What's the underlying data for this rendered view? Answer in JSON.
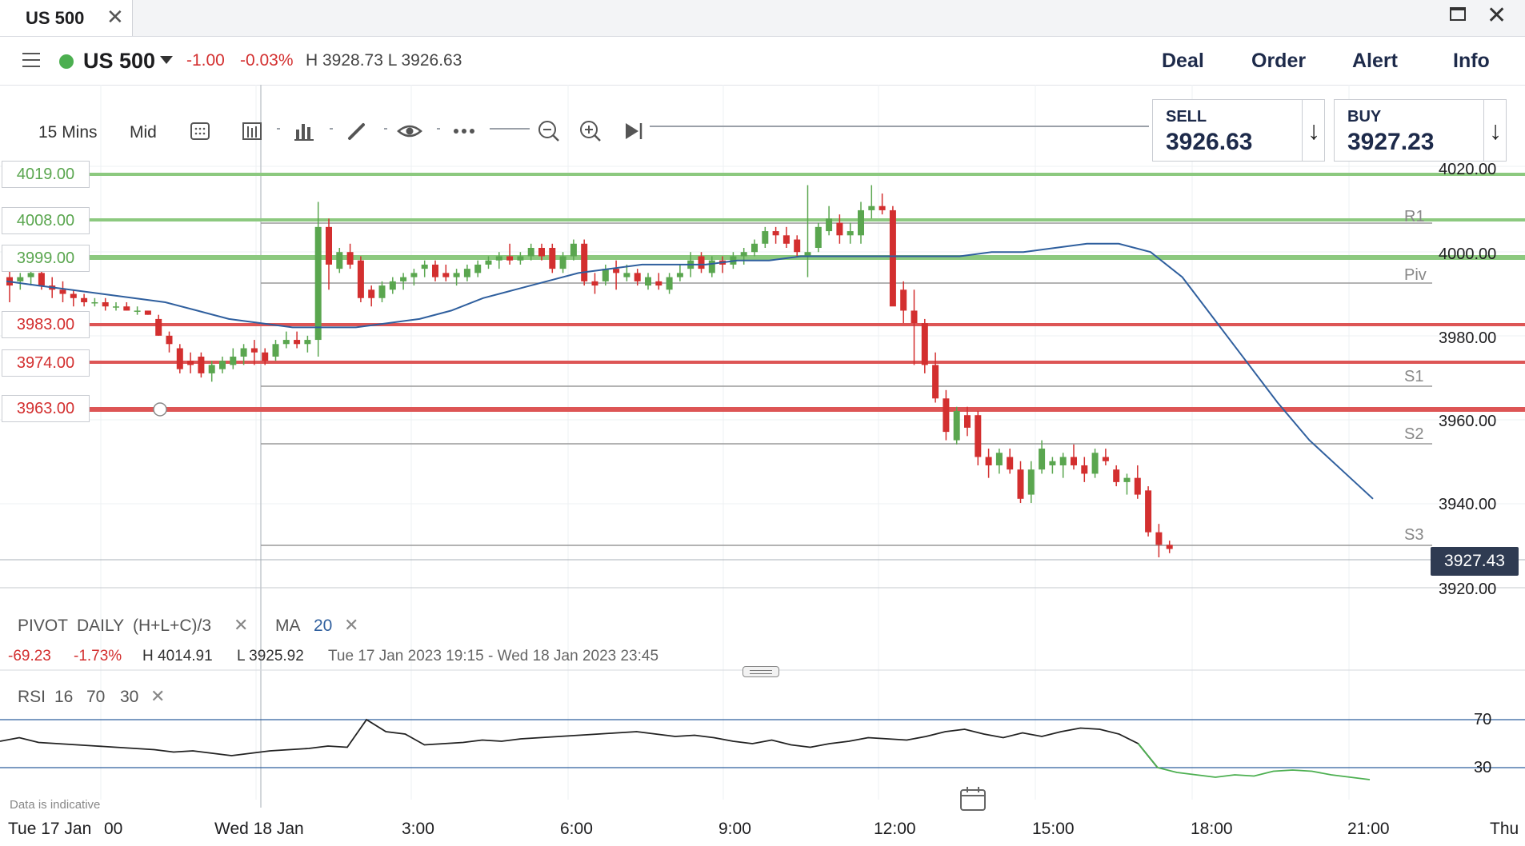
{
  "window": {
    "tab_title": "US 500"
  },
  "instrument": {
    "name": "US 500",
    "change_abs": "-1.00",
    "change_pct": "-0.03%",
    "high_low": "H 3928.73 L 3926.63"
  },
  "header_actions": [
    "Deal",
    "Order",
    "Alert",
    "Info"
  ],
  "toolbar": {
    "interval": "15 Mins",
    "price_type": "Mid"
  },
  "sell": {
    "label": "SELL",
    "price": "3926.63"
  },
  "buy": {
    "label": "BUY",
    "price": "3927.23"
  },
  "colors": {
    "up": "#5aa64f",
    "down": "#d32f2f",
    "ma": "#2f5f9e",
    "rsi": "#222222",
    "rsi_low": "#4caf50",
    "level_green": "#8cc97f",
    "level_red": "#dd5555"
  },
  "levels": [
    {
      "price": "4019.00",
      "type": "green"
    },
    {
      "price": "4008.00",
      "type": "green"
    },
    {
      "price": "3999.00",
      "type": "green"
    },
    {
      "price": "3983.00",
      "type": "red"
    },
    {
      "price": "3974.00",
      "type": "red"
    },
    {
      "price": "3963.00",
      "type": "red"
    }
  ],
  "price_axis": [
    "4020.00",
    "4000.00",
    "3980.00",
    "3960.00",
    "3940.00",
    "3920.00"
  ],
  "pivot_labels": [
    "R1",
    "Piv",
    "S1",
    "S2",
    "S3"
  ],
  "current_price": "3927.43",
  "indicators": {
    "pivot": {
      "name": "PIVOT",
      "period": "DAILY",
      "formula": "(H+L+C)/3"
    },
    "ma": {
      "name": "MA",
      "period": "20"
    },
    "rsi": {
      "name": "RSI",
      "period": "16",
      "upper": "70",
      "lower": "30"
    }
  },
  "range_stats": {
    "change_abs": "-69.23",
    "change_pct": "-1.73%",
    "high": "H 4014.91",
    "low": "L 3925.92",
    "range": "Tue 17 Jan 2023 19:15 - Wed 18 Jan 2023 23:45"
  },
  "rsi_levels": [
    "70",
    "30"
  ],
  "footer_note": "Data is indicative",
  "time_axis": [
    "Tue 17 Jan",
    "00",
    "Wed 18 Jan",
    "3:00",
    "6:00",
    "9:00",
    "12:00",
    "15:00",
    "18:00",
    "21:00",
    "Thu"
  ]
}
